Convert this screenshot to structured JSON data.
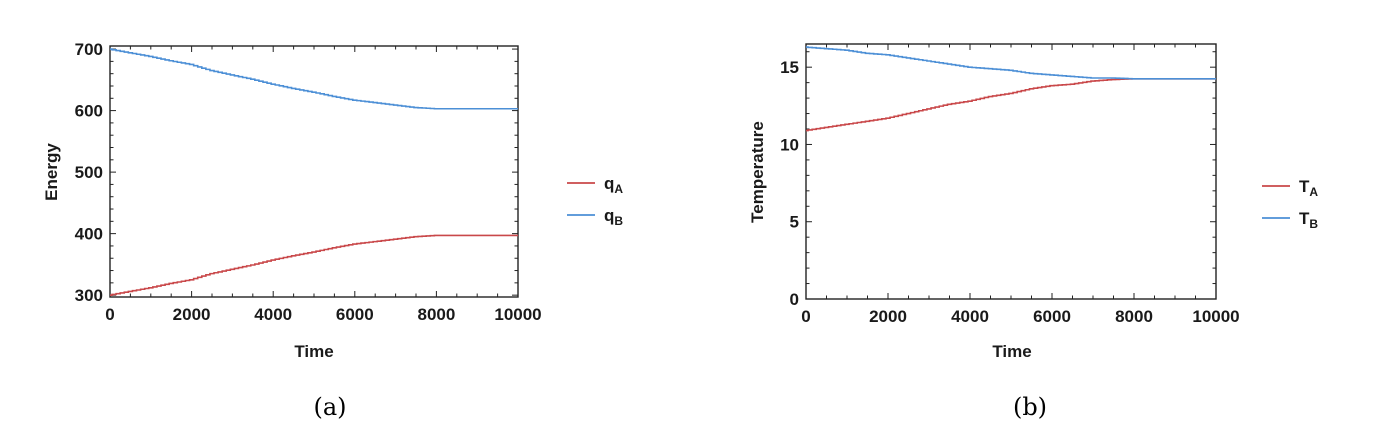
{
  "chart_data": [
    {
      "type": "line",
      "xlabel": "Time",
      "ylabel": "Energy",
      "xlim": [
        0,
        10000
      ],
      "ylim": [
        297,
        705
      ],
      "x_ticks": [
        "0",
        "2000",
        "4000",
        "6000",
        "8000",
        "10000"
      ],
      "x_tick_values": [
        0,
        2000,
        4000,
        6000,
        8000,
        10000
      ],
      "y_ticks": [
        "300",
        "400",
        "500",
        "600",
        "700"
      ],
      "y_tick_values": [
        300,
        400,
        500,
        600,
        700
      ],
      "grid": false,
      "legend_position": "right",
      "caption": "(a)",
      "series": [
        {
          "name": "q",
          "subscript": "A",
          "color": "#c9484a",
          "x": [
            0,
            500,
            1000,
            1500,
            2000,
            2500,
            3000,
            3500,
            4000,
            4500,
            5000,
            5500,
            6000,
            6500,
            7000,
            7500,
            8000,
            8500,
            9000,
            9500,
            10000
          ],
          "y": [
            300,
            306,
            312,
            319,
            325,
            335,
            342,
            349,
            357,
            364,
            370,
            377,
            383,
            387,
            391,
            395,
            397,
            397,
            397,
            397,
            397
          ]
        },
        {
          "name": "q",
          "subscript": "B",
          "color": "#4c8fd6",
          "x": [
            0,
            500,
            1000,
            1500,
            2000,
            2500,
            3000,
            3500,
            4000,
            4500,
            5000,
            5500,
            6000,
            6500,
            7000,
            7500,
            8000,
            8500,
            9000,
            9500,
            10000
          ],
          "y": [
            700,
            694,
            688,
            681,
            675,
            665,
            658,
            651,
            643,
            636,
            630,
            623,
            617,
            613,
            609,
            605,
            603,
            603,
            603,
            603,
            603
          ]
        }
      ]
    },
    {
      "type": "line",
      "xlabel": "Time",
      "ylabel": "Temperature",
      "xlim": [
        0,
        10000
      ],
      "ylim": [
        0,
        16.5
      ],
      "x_ticks": [
        "0",
        "2000",
        "4000",
        "6000",
        "8000",
        "10000"
      ],
      "x_tick_values": [
        0,
        2000,
        4000,
        6000,
        8000,
        10000
      ],
      "y_ticks": [
        "0",
        "5",
        "10",
        "15"
      ],
      "y_tick_values": [
        0,
        5,
        10,
        15
      ],
      "grid": false,
      "legend_position": "right",
      "caption": "(b)",
      "series": [
        {
          "name": "T",
          "subscript": "A",
          "color": "#c9484a",
          "x": [
            0,
            500,
            1000,
            1500,
            2000,
            2500,
            3000,
            3500,
            4000,
            4500,
            5000,
            5500,
            6000,
            6500,
            7000,
            7500,
            8000,
            8500,
            9000,
            9500,
            10000
          ],
          "y": [
            10.9,
            11.1,
            11.3,
            11.5,
            11.7,
            12.0,
            12.3,
            12.6,
            12.8,
            13.1,
            13.3,
            13.6,
            13.8,
            13.9,
            14.1,
            14.2,
            14.25,
            14.25,
            14.25,
            14.25,
            14.25
          ]
        },
        {
          "name": "T",
          "subscript": "B",
          "color": "#4c8fd6",
          "x": [
            0,
            500,
            1000,
            1500,
            2000,
            2500,
            3000,
            3500,
            4000,
            4500,
            5000,
            5500,
            6000,
            6500,
            7000,
            7500,
            8000,
            8500,
            9000,
            9500,
            10000
          ],
          "y": [
            16.3,
            16.2,
            16.1,
            15.9,
            15.8,
            15.6,
            15.4,
            15.2,
            15.0,
            14.9,
            14.8,
            14.6,
            14.5,
            14.4,
            14.3,
            14.3,
            14.25,
            14.25,
            14.25,
            14.25,
            14.25
          ]
        }
      ]
    }
  ]
}
